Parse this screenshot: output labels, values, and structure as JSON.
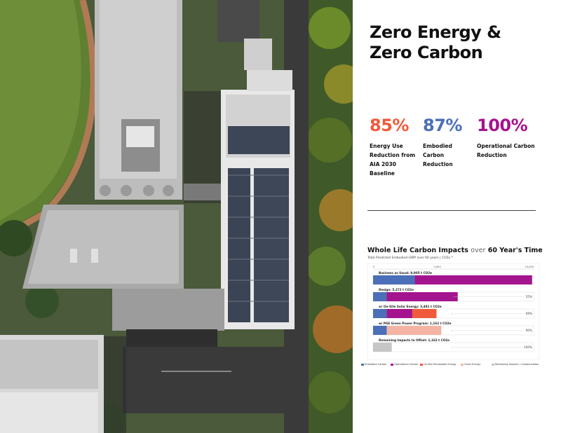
{
  "photo": {
    "alt_name": "aerial-building-photo"
  },
  "headline": {
    "line1": "Zero Energy &",
    "line2": "Zero Carbon"
  },
  "stats": [
    {
      "value": "85%",
      "label_lines": [
        "Energy Use",
        "Reduction from",
        "AIA 2030",
        "Baseline"
      ],
      "color": "#ef5b3a"
    },
    {
      "value": "87%",
      "label_lines": [
        "Embodied",
        "Carbon",
        "Reduction"
      ],
      "color": "#4b6fb8"
    },
    {
      "value": "100%",
      "label_lines": [
        "Operational Carbon",
        "Reduction"
      ],
      "color": "#a5148f"
    }
  ],
  "impacts": {
    "title_prefix": "Whole Life Carbon Impacts",
    "title_over": "over",
    "title_suffix": "60 Year's Time",
    "subtitle": "Total Predicted Embodied GWP over 60 years | CO2e *"
  },
  "chart_data": {
    "type": "bar",
    "orientation": "horizontal",
    "stacked": true,
    "axis_ticks": [
      "0",
      "4,000",
      "10,000"
    ],
    "xlim": [
      0,
      10000
    ],
    "rows": [
      {
        "label": "Business as Usual: 9,905 t CO2e",
        "segments": [
          {
            "series": "Embodied Carbon",
            "value": 2600
          },
          {
            "series": "Operational Carbon",
            "value": 7305
          }
        ],
        "reduction": ""
      },
      {
        "label": "Design: 5,272 t CO2e",
        "segments": [
          {
            "series": "Embodied Carbon",
            "value": 850
          },
          {
            "series": "Operational Carbon",
            "value": 4422
          }
        ],
        "reduction": "55%"
      },
      {
        "label": "w/ On-Site Solar Energy: 3,481 t CO2e",
        "segments": [
          {
            "series": "Embodied Carbon",
            "value": 850
          },
          {
            "series": "Operational Carbon",
            "value": 1600
          },
          {
            "series": "On-Site Renewable Energy",
            "value": 1500
          }
        ],
        "reduction": "69%"
      },
      {
        "label": "w/ PGE Green Power Program: 1,162 t CO2e",
        "segments": [
          {
            "series": "Embodied Carbon",
            "value": 850
          },
          {
            "series": "Clean Energy",
            "value": 3400
          }
        ],
        "reduction": "90%"
      },
      {
        "label": "Remaining Impacts to Offset: 1,162 t CO2e",
        "segments": [
          {
            "series": "Remaining Impacts / Compensation",
            "value": 1162
          }
        ],
        "reduction": "100%"
      }
    ],
    "series": [
      {
        "name": "Embodied Carbon",
        "color": "#4b6fb8"
      },
      {
        "name": "Operational Carbon",
        "color": "#a5148f"
      },
      {
        "name": "On-Site Renewable Energy",
        "color": "#ef5b3a"
      },
      {
        "name": "Clean Energy",
        "color": "#f4b4a3"
      },
      {
        "name": "Remaining Impacts / Compensation",
        "color": "#c6c6c6"
      }
    ]
  }
}
